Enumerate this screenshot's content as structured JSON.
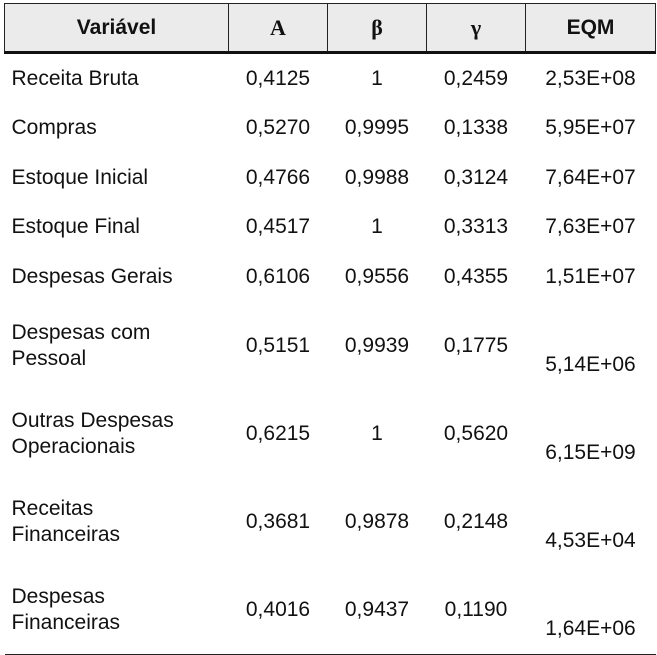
{
  "table": {
    "header": [
      "Variável",
      "A",
      "β",
      "γ",
      "EQM"
    ],
    "rows": [
      [
        "Receita Bruta",
        "0,4125",
        "1",
        "0,2459",
        "2,53E+08"
      ],
      [
        "Compras",
        "0,5270",
        "0,9995",
        "0,1338",
        "5,95E+07"
      ],
      [
        "Estoque Inicial",
        "0,4766",
        "0,9988",
        "0,3124",
        "7,64E+07"
      ],
      [
        "Estoque Final",
        "0,4517",
        "1",
        "0,3313",
        "7,63E+07"
      ],
      [
        "Despesas Gerais",
        "0,6106",
        "0,9556",
        "0,4355",
        "1,51E+07"
      ],
      [
        "Despesas com\nPessoal",
        "0,5151",
        "0,9939",
        "0,1775",
        "5,14E+06"
      ],
      [
        "Outras Despesas\nOperacionais",
        "0,6215",
        "1",
        "0,5620",
        "6,15E+09"
      ],
      [
        "Receitas\nFinanceiras",
        "0,3681",
        "0,9878",
        "0,2148",
        "4,53E+04"
      ],
      [
        "Despesas\nFinanceiras",
        "0,4016",
        "0,9437",
        "0,1190",
        "1,64E+06"
      ]
    ]
  }
}
